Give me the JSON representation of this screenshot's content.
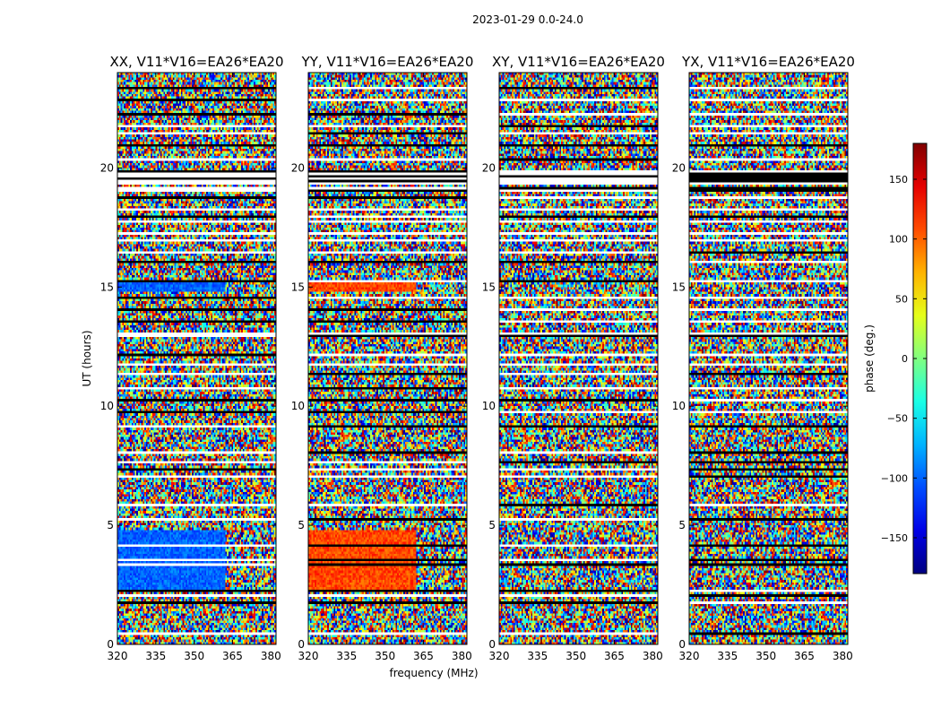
{
  "chart_data": {
    "type": "heatmap",
    "title": "2023-01-29 0.0-24.0",
    "xlabel": "frequency (MHz)",
    "ylabel": "UT (hours)",
    "xlim": [
      320,
      382
    ],
    "ylim": [
      0,
      24
    ],
    "xticks": [
      320,
      335,
      350,
      365,
      380
    ],
    "yticks": [
      0,
      5,
      10,
      15,
      20
    ],
    "panels": [
      {
        "title": "XX, V11*V16=EA26*EA20",
        "coherent_hue": -100
      },
      {
        "title": "YY, V11*V16=EA26*EA20",
        "coherent_hue": 110
      },
      {
        "title": "XY, V11*V16=EA26*EA20",
        "coherent_hue": null
      },
      {
        "title": "YX, V11*V16=EA26*EA20",
        "coherent_hue": null
      }
    ],
    "colorbar": {
      "label": "phase (deg.)",
      "range": [
        -180,
        180
      ],
      "ticks": [
        150,
        100,
        50,
        0,
        -50,
        -100,
        -150
      ],
      "tick_labels": [
        "150",
        "100",
        "50",
        "0",
        "−50",
        "−100",
        "−150"
      ],
      "colormap": "jet"
    },
    "flagged_ut_bands": [
      [
        0.45,
        0.55
      ],
      [
        1.45,
        1.55
      ],
      [
        1.72,
        1.82
      ],
      [
        2.0,
        2.12
      ],
      [
        2.18,
        2.26
      ],
      [
        3.3,
        3.38
      ],
      [
        3.55,
        3.62
      ],
      [
        4.1,
        4.18
      ],
      [
        4.45,
        4.52
      ],
      [
        4.85,
        4.95
      ],
      [
        5.15,
        5.25
      ],
      [
        5.85,
        5.92
      ],
      [
        6.5,
        6.55
      ],
      [
        7.0,
        7.05
      ],
      [
        7.3,
        7.38
      ],
      [
        7.6,
        7.7
      ],
      [
        8.05,
        8.12
      ],
      [
        8.55,
        8.62
      ],
      [
        9.1,
        9.15
      ],
      [
        9.7,
        9.78
      ],
      [
        10.2,
        10.3
      ],
      [
        10.75,
        10.82
      ],
      [
        11.3,
        11.38
      ],
      [
        11.7,
        11.78
      ],
      [
        12.1,
        12.18
      ],
      [
        12.9,
        13.1
      ],
      [
        13.5,
        13.58
      ],
      [
        14.0,
        14.08
      ],
      [
        14.5,
        14.6
      ],
      [
        15.22,
        15.3
      ],
      [
        15.55,
        15.62
      ],
      [
        16.0,
        16.08
      ],
      [
        16.45,
        16.52
      ],
      [
        16.9,
        16.98
      ],
      [
        17.25,
        17.32
      ],
      [
        17.7,
        17.78
      ],
      [
        17.9,
        18.0
      ],
      [
        18.2,
        18.28
      ],
      [
        18.7,
        18.78
      ],
      [
        19.05,
        19.15
      ],
      [
        19.3,
        19.9
      ],
      [
        20.35,
        20.42
      ],
      [
        20.9,
        20.98
      ],
      [
        21.4,
        21.45
      ],
      [
        21.7,
        21.78
      ],
      [
        22.2,
        22.28
      ],
      [
        22.8,
        22.88
      ],
      [
        23.3,
        23.38
      ]
    ]
  }
}
